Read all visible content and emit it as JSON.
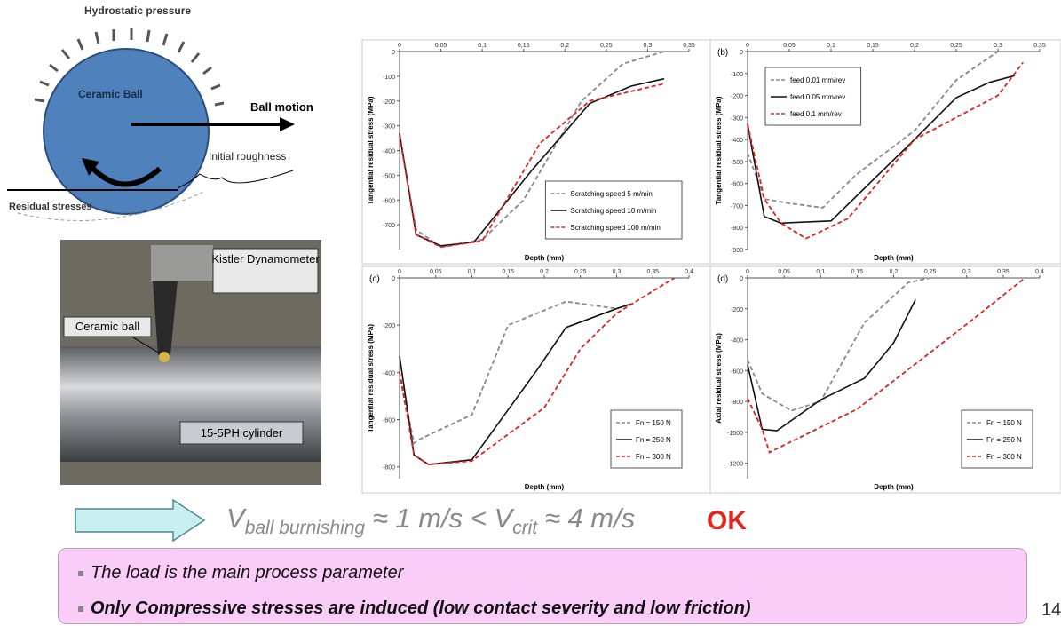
{
  "diagram": {
    "pressure": "Hydrostatic pressure",
    "ball": "Ceramic Ball",
    "motion": "Ball motion",
    "roughness": "Initial roughness",
    "stresses": "Residual stresses"
  },
  "photo": {
    "dynamometer": "Kistler Dynamometer",
    "ball": "Ceramic ball",
    "cylinder": "15-5PH cylinder"
  },
  "formula": {
    "v1": "V",
    "sub1": "ball burnishing",
    "rel1": "≈ 1 m/s < ",
    "v2": "V",
    "sub2": "crit",
    "rel2": "≈ 4 m/s",
    "ok": "OK"
  },
  "bullets": [
    "The load is the main process parameter",
    "Only Compressive stresses are induced (low contact severity and low friction)"
  ],
  "page_number": "14",
  "chart_data": [
    {
      "type": "line",
      "ylabel": "Tangential residual stress (MPa)",
      "xlabel": "Depth (mm)",
      "legend": "lower right",
      "xlim": [
        0,
        0.35
      ],
      "xticks": [
        0,
        {
          "value": 0.05,
          "label": "0,05"
        },
        {
          "value": 0.1,
          "label": "0,1"
        },
        {
          "value": 0.15,
          "label": "0,15"
        },
        {
          "value": 0.2,
          "label": "0,2"
        },
        {
          "value": 0.25,
          "label": "0,25"
        },
        {
          "value": 0.3,
          "label": "0,3"
        },
        {
          "value": 0.35,
          "label": "0,35"
        }
      ],
      "ylim": [
        -800,
        0
      ],
      "yticks": [
        0,
        -100,
        -200,
        -300,
        -400,
        -500,
        -600,
        -700
      ],
      "series": [
        {
          "name": "Scratching speed 5 m/min",
          "color": "#888888",
          "style": "dashed",
          "x": [
            0,
            0.02,
            0.05,
            0.1,
            0.15,
            0.22,
            0.27,
            0.32
          ],
          "values": [
            -340,
            -720,
            -790,
            -760,
            -600,
            -200,
            -50,
            0
          ]
        },
        {
          "name": "Scratching speed 10 m/min",
          "color": "#111111",
          "style": "solid",
          "x": [
            0,
            0.02,
            0.05,
            0.09,
            0.16,
            0.23,
            0.28,
            0.32
          ],
          "values": [
            -330,
            -740,
            -785,
            -770,
            -480,
            -210,
            -140,
            -110
          ]
        },
        {
          "name": "Scratching speed 100 m/min",
          "color": "#e02020",
          "style": "dashed",
          "x": [
            0,
            0.02,
            0.05,
            0.1,
            0.17,
            0.23,
            0.32
          ],
          "values": [
            -340,
            -740,
            -790,
            -765,
            -370,
            -200,
            -130
          ]
        }
      ]
    },
    {
      "type": "line",
      "panel": "(b)",
      "ylabel": "Tangential residual stress (MPa)",
      "xlabel": "Depth (mm)",
      "legend": "upper left",
      "xlim": [
        0,
        0.35
      ],
      "xticks": [
        0,
        {
          "value": 0.05,
          "label": "0,05"
        },
        {
          "value": 0.1,
          "label": "0,1"
        },
        {
          "value": 0.15,
          "label": "0,15"
        },
        {
          "value": 0.2,
          "label": "0,2"
        },
        {
          "value": 0.25,
          "label": "0,25"
        },
        {
          "value": 0.3,
          "label": "0,3"
        },
        {
          "value": 0.35,
          "label": "0,35"
        }
      ],
      "ylim": [
        -900,
        0
      ],
      "yticks": [
        0,
        -100,
        -200,
        -300,
        -400,
        -500,
        -600,
        -700,
        -800,
        -900
      ],
      "series": [
        {
          "name": "feed 0.01 mm/rev",
          "color": "#888888",
          "style": "dashed",
          "x": [
            0,
            0.02,
            0.05,
            0.09,
            0.13,
            0.2,
            0.25,
            0.3
          ],
          "values": [
            -460,
            -670,
            -690,
            -710,
            -560,
            -360,
            -130,
            0
          ]
        },
        {
          "name": "feed 0.05 mm/rev",
          "color": "#111111",
          "style": "solid",
          "x": [
            0,
            0.02,
            0.04,
            0.1,
            0.2,
            0.25,
            0.29,
            0.32
          ],
          "values": [
            -330,
            -750,
            -780,
            -770,
            -400,
            -210,
            -140,
            -110
          ]
        },
        {
          "name": "feed 0.1 mm/rev",
          "color": "#e02020",
          "style": "dashed",
          "x": [
            0,
            0.02,
            0.04,
            0.07,
            0.12,
            0.2,
            0.3,
            0.33
          ],
          "values": [
            -330,
            -670,
            -780,
            -850,
            -760,
            -400,
            -200,
            -50
          ]
        }
      ]
    },
    {
      "type": "line",
      "panel": "(c)",
      "ylabel": "Tangential residual stress (MPa)",
      "xlabel": "Depth (mm)",
      "legend": "lower right",
      "xlim": [
        0,
        0.4
      ],
      "xticks": [
        0,
        {
          "value": 0.05,
          "label": "0,05"
        },
        {
          "value": 0.1,
          "label": "0,1"
        },
        {
          "value": 0.15,
          "label": "0,15"
        },
        {
          "value": 0.2,
          "label": "0,2"
        },
        {
          "value": 0.25,
          "label": "0,25"
        },
        {
          "value": 0.3,
          "label": "0,3"
        },
        {
          "value": 0.35,
          "label": "0,35"
        },
        {
          "value": 0.4,
          "label": "0,4"
        }
      ],
      "ylim": [
        -850,
        0
      ],
      "yticks": [
        0,
        -200,
        -400,
        -600,
        -800
      ],
      "series": [
        {
          "name": "Fn = 150 N",
          "color": "#888888",
          "style": "dashed",
          "x": [
            0,
            0.02,
            0.03,
            0.1,
            0.15,
            0.23,
            0.3,
            0.32
          ],
          "values": [
            -400,
            -700,
            -680,
            -580,
            -200,
            -100,
            -130,
            -110
          ]
        },
        {
          "name": "Fn = 250 N",
          "color": "#111111",
          "style": "solid",
          "x": [
            0,
            0.02,
            0.04,
            0.1,
            0.19,
            0.23,
            0.3,
            0.32
          ],
          "values": [
            -330,
            -750,
            -790,
            -770,
            -390,
            -210,
            -130,
            -110
          ]
        },
        {
          "name": "Fn = 300 N",
          "color": "#e02020",
          "style": "dashed",
          "x": [
            0,
            0.02,
            0.04,
            0.1,
            0.2,
            0.25,
            0.3,
            0.38
          ],
          "values": [
            -400,
            -750,
            -790,
            -775,
            -550,
            -300,
            -150,
            0
          ]
        }
      ]
    },
    {
      "type": "line",
      "panel": "(d)",
      "ylabel": "Axial residual stress (MPa)",
      "xlabel": "Depth (mm)",
      "legend": "lower right",
      "xlim": [
        0,
        0.4
      ],
      "xticks": [
        0,
        {
          "value": 0.05,
          "label": "0,05"
        },
        {
          "value": 0.1,
          "label": "0,1"
        },
        {
          "value": 0.15,
          "label": "0,15"
        },
        {
          "value": 0.2,
          "label": "0,2"
        },
        {
          "value": 0.25,
          "label": "0,25"
        },
        {
          "value": 0.3,
          "label": "0,3"
        },
        {
          "value": 0.35,
          "label": "0,35"
        },
        {
          "value": 0.4,
          "label": "0,4"
        }
      ],
      "ylim": [
        -1300,
        0
      ],
      "yticks": [
        0,
        -200,
        -400,
        -600,
        -800,
        -1000,
        -1200
      ],
      "series": [
        {
          "name": "Fn = 150 N",
          "color": "#888888",
          "style": "dashed",
          "x": [
            0,
            0.02,
            0.06,
            0.1,
            0.16,
            0.22,
            0.25
          ],
          "values": [
            -530,
            -750,
            -860,
            -800,
            -290,
            -30,
            0
          ]
        },
        {
          "name": "Fn = 250 N",
          "color": "#111111",
          "style": "solid",
          "x": [
            0,
            0.02,
            0.04,
            0.1,
            0.16,
            0.2,
            0.23
          ],
          "values": [
            -560,
            -980,
            -990,
            -790,
            -650,
            -420,
            -140
          ]
        },
        {
          "name": "Fn = 300 N",
          "color": "#e02020",
          "style": "dashed",
          "x": [
            0,
            0.02,
            0.03,
            0.15,
            0.3,
            0.38
          ],
          "values": [
            -780,
            -980,
            -1130,
            -850,
            -300,
            0
          ]
        }
      ]
    }
  ]
}
